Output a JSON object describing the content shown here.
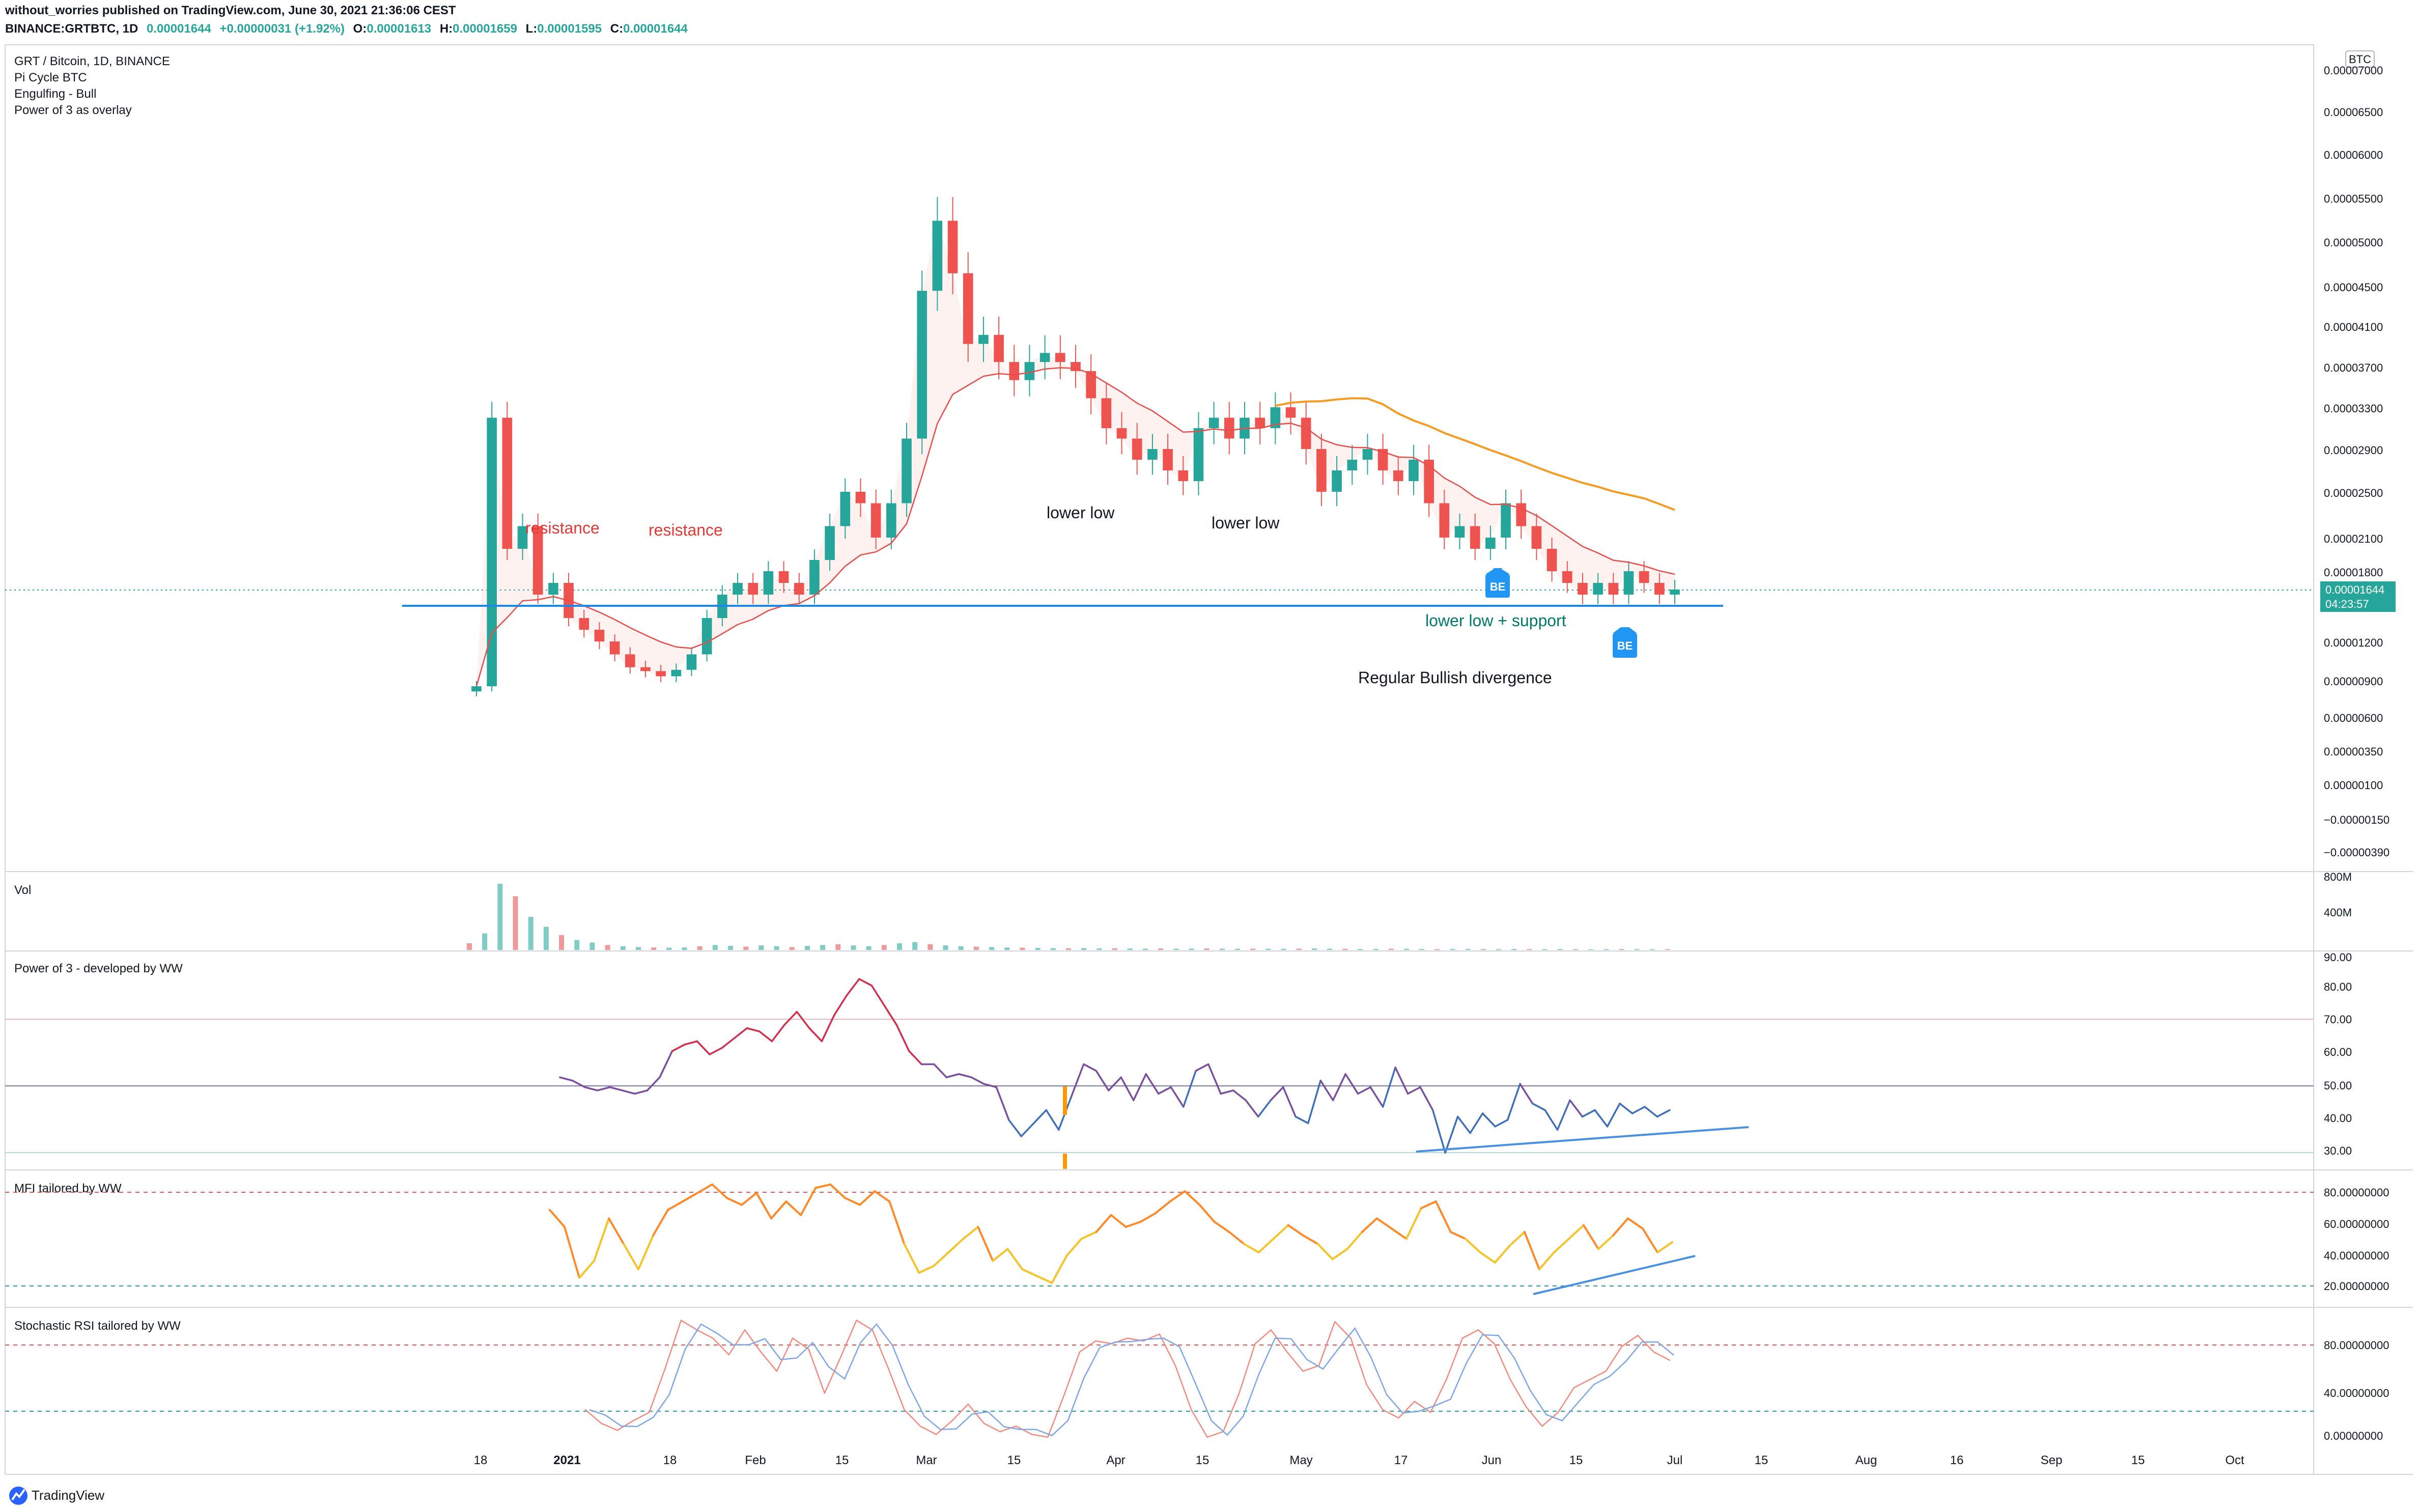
{
  "header": {
    "line1": "without_worries published on TradingView.com, June 30, 2021 21:36:06 CEST",
    "symbol": "BINANCE:GRTBTC, 1D",
    "ohlc_values": [
      "0.00001644",
      "+0.00000031 (+1.92%)",
      "0.00001613",
      "0.00001659",
      "0.00001595",
      "0.00001644"
    ],
    "ohlc_labels": [
      "O:",
      "H:",
      "L:",
      "C:"
    ]
  },
  "legend": {
    "title": "GRT / Bitcoin, 1D, BINANCE",
    "items": [
      "Pi Cycle BTC",
      "Engulfing - Bull",
      "Power of 3 as overlay"
    ]
  },
  "currency": "BTC",
  "last_price": {
    "value": "0.00001644",
    "countdown": "04:23:57"
  },
  "footer": {
    "brand": "TradingView"
  },
  "x_axis": {
    "labels": [
      "18",
      "2021",
      "18",
      "Feb",
      "15",
      "Mar",
      "15",
      "Apr",
      "15",
      "May",
      "17",
      "Jun",
      "15",
      "Jul",
      "15",
      "Aug",
      "16",
      "Sep",
      "15",
      "Oct"
    ]
  },
  "colors": {
    "up": "#26a69a",
    "down": "#ef5350",
    "ema": "#e84d4d",
    "sma_long": "#f59b22",
    "support": "#1e88e5",
    "tag": "#2196f3",
    "price_tag": "#26a69a",
    "p3_red": "#d32f4f",
    "p3_purple": "#7b4f9d",
    "p3_blue": "#3f6fb8",
    "mfi_orange": "#ff8a2a",
    "mfi_yellow": "#f4c42a"
  },
  "chart_data": [
    {
      "type": "candlestick",
      "title": "GRT / Bitcoin, 1D, BINANCE",
      "y_tick_labels": [
        "0.00007000",
        "0.00006500",
        "0.00006000",
        "0.00005500",
        "0.00005000",
        "0.00004500",
        "0.00004100",
        "0.00003700",
        "0.00003300",
        "0.00002900",
        "0.00002500",
        "0.00002100",
        "0.00001800",
        "0.00001200",
        "0.00000900",
        "0.00000600",
        "0.00000350",
        "0.00000100",
        "−0.00000150",
        "−0.00000390"
      ],
      "date_range": [
        "2020-12-17",
        "2021-06-30"
      ],
      "closes": [
        8.5e-06,
        3.2e-05,
        2e-05,
        2.2e-05,
        1.6e-05,
        1.7e-05,
        1.4e-05,
        1.3e-05,
        1.2e-05,
        1.1e-05,
        1e-05,
        9.7e-06,
        9.3e-06,
        9.8e-06,
        1.1e-05,
        1.4e-05,
        1.6e-05,
        1.7e-05,
        1.6e-05,
        1.8e-05,
        1.7e-05,
        1.6e-05,
        1.9e-05,
        2.2e-05,
        2.5e-05,
        2.4e-05,
        2.1e-05,
        2.4e-05,
        3e-05,
        4.6e-05,
        5.4e-05,
        4.8e-05,
        4e-05,
        4.1e-05,
        3.8e-05,
        3.6e-05,
        3.8e-05,
        3.9e-05,
        3.8e-05,
        3.7e-05,
        3.4e-05,
        3.1e-05,
        3e-05,
        2.8e-05,
        2.9e-05,
        2.7e-05,
        2.6e-05,
        3.1e-05,
        3.2e-05,
        3e-05,
        3.2e-05,
        3.1e-05,
        3.3e-05,
        3.2e-05,
        2.9e-05,
        2.5e-05,
        2.7e-05,
        2.8e-05,
        2.9e-05,
        2.7e-05,
        2.6e-05,
        2.8e-05,
        2.4e-05,
        2.1e-05,
        2.2e-05,
        2e-05,
        2.1e-05,
        2.4e-05,
        2.2e-05,
        2e-05,
        1.8e-05,
        1.7e-05,
        1.6e-05,
        1.7e-05,
        1.6e-05,
        1.8e-05,
        1.7e-05,
        1.6e-05,
        1.644e-05
      ],
      "annotations": [
        "resistance",
        "resistance",
        "lower low",
        "lower low",
        "lower low + support",
        "Regular Bullish divergence",
        "BE",
        "BE"
      ],
      "support_level": 1.41e-05,
      "last_value": 1.644e-05
    },
    {
      "type": "bar",
      "title": "Vol",
      "y_tick_labels": [
        "800M",
        "400M"
      ],
      "values": [
        80,
        200,
        800,
        650,
        400,
        280,
        180,
        120,
        90,
        60,
        45,
        35,
        30,
        28,
        30,
        45,
        60,
        50,
        40,
        55,
        45,
        35,
        50,
        60,
        70,
        55,
        45,
        60,
        80,
        95,
        70,
        55,
        45,
        40,
        35,
        30,
        28,
        25,
        22,
        20,
        22,
        18,
        20,
        18,
        16,
        18,
        15,
        16,
        18,
        15,
        14,
        16,
        15,
        14,
        16,
        18,
        15,
        14,
        12,
        13,
        15,
        14,
        12,
        11,
        13,
        12,
        11,
        10,
        12,
        11,
        10,
        11,
        10,
        9,
        10,
        11,
        10,
        9,
        10
      ],
      "ylim": [
        0,
        800
      ]
    },
    {
      "type": "line",
      "title": "Power of 3 - developed by WW",
      "y_tick_labels": [
        "90.00",
        "80.00",
        "70.00",
        "60.00",
        "50.00",
        "40.00",
        "30.00"
      ],
      "values": [
        55,
        54,
        52,
        51,
        52,
        51,
        50,
        51,
        55,
        63,
        65,
        66,
        62,
        64,
        67,
        70,
        69,
        66,
        71,
        75,
        70,
        66,
        74,
        80,
        85,
        83,
        77,
        71,
        63,
        59,
        59,
        55,
        56,
        55,
        53,
        52,
        42,
        37,
        41,
        45,
        39,
        49,
        59,
        57,
        51,
        55,
        48,
        56,
        50,
        52,
        46,
        57,
        59,
        50,
        51,
        48,
        43,
        48,
        52,
        43,
        41,
        54,
        48,
        56,
        50,
        52,
        46,
        58,
        50,
        52,
        45,
        32,
        43,
        38,
        44,
        40,
        42,
        53,
        47,
        45,
        39,
        48,
        43,
        45,
        40,
        47,
        44,
        46,
        43,
        45
      ],
      "ylim": [
        28,
        92
      ]
    },
    {
      "type": "line",
      "title": "MFI tailored by WW",
      "y_tick_labels": [
        "80.00000000",
        "60.00000000",
        "40.00000000",
        "20.00000000"
      ],
      "values": [
        65,
        55,
        25,
        35,
        60,
        45,
        30,
        50,
        65,
        70,
        75,
        80,
        72,
        68,
        75,
        60,
        70,
        62,
        78,
        80,
        72,
        68,
        76,
        70,
        45,
        28,
        32,
        40,
        48,
        55,
        35,
        42,
        30,
        26,
        22,
        38,
        48,
        52,
        62,
        55,
        58,
        63,
        70,
        76,
        68,
        58,
        52,
        45,
        40,
        48,
        56,
        50,
        45,
        36,
        42,
        52,
        60,
        54,
        48,
        66,
        70,
        52,
        48,
        40,
        34,
        44,
        52,
        30,
        40,
        48,
        56,
        42,
        50,
        60,
        54,
        40,
        46
      ],
      "ylim": [
        10,
        85
      ]
    },
    {
      "type": "line",
      "title": "Stochastic RSI tailored by WW",
      "y_tick_labels": [
        "80.00000000",
        "40.00000000",
        "0.00000000"
      ],
      "values": [
        30,
        20,
        15,
        22,
        28,
        60,
        95,
        88,
        82,
        70,
        88,
        72,
        58,
        82,
        74,
        42,
        68,
        95,
        88,
        60,
        30,
        18,
        12,
        22,
        34,
        20,
        14,
        18,
        12,
        10,
        40,
        72,
        80,
        78,
        82,
        80,
        85,
        62,
        30,
        10,
        14,
        42,
        78,
        88,
        72,
        58,
        62,
        94,
        82,
        48,
        30,
        24,
        36,
        28,
        52,
        82,
        88,
        78,
        52,
        32,
        18,
        28,
        46,
        52,
        58,
        76,
        84,
        72,
        66
      ],
      "ylim": [
        0,
        100
      ]
    }
  ]
}
